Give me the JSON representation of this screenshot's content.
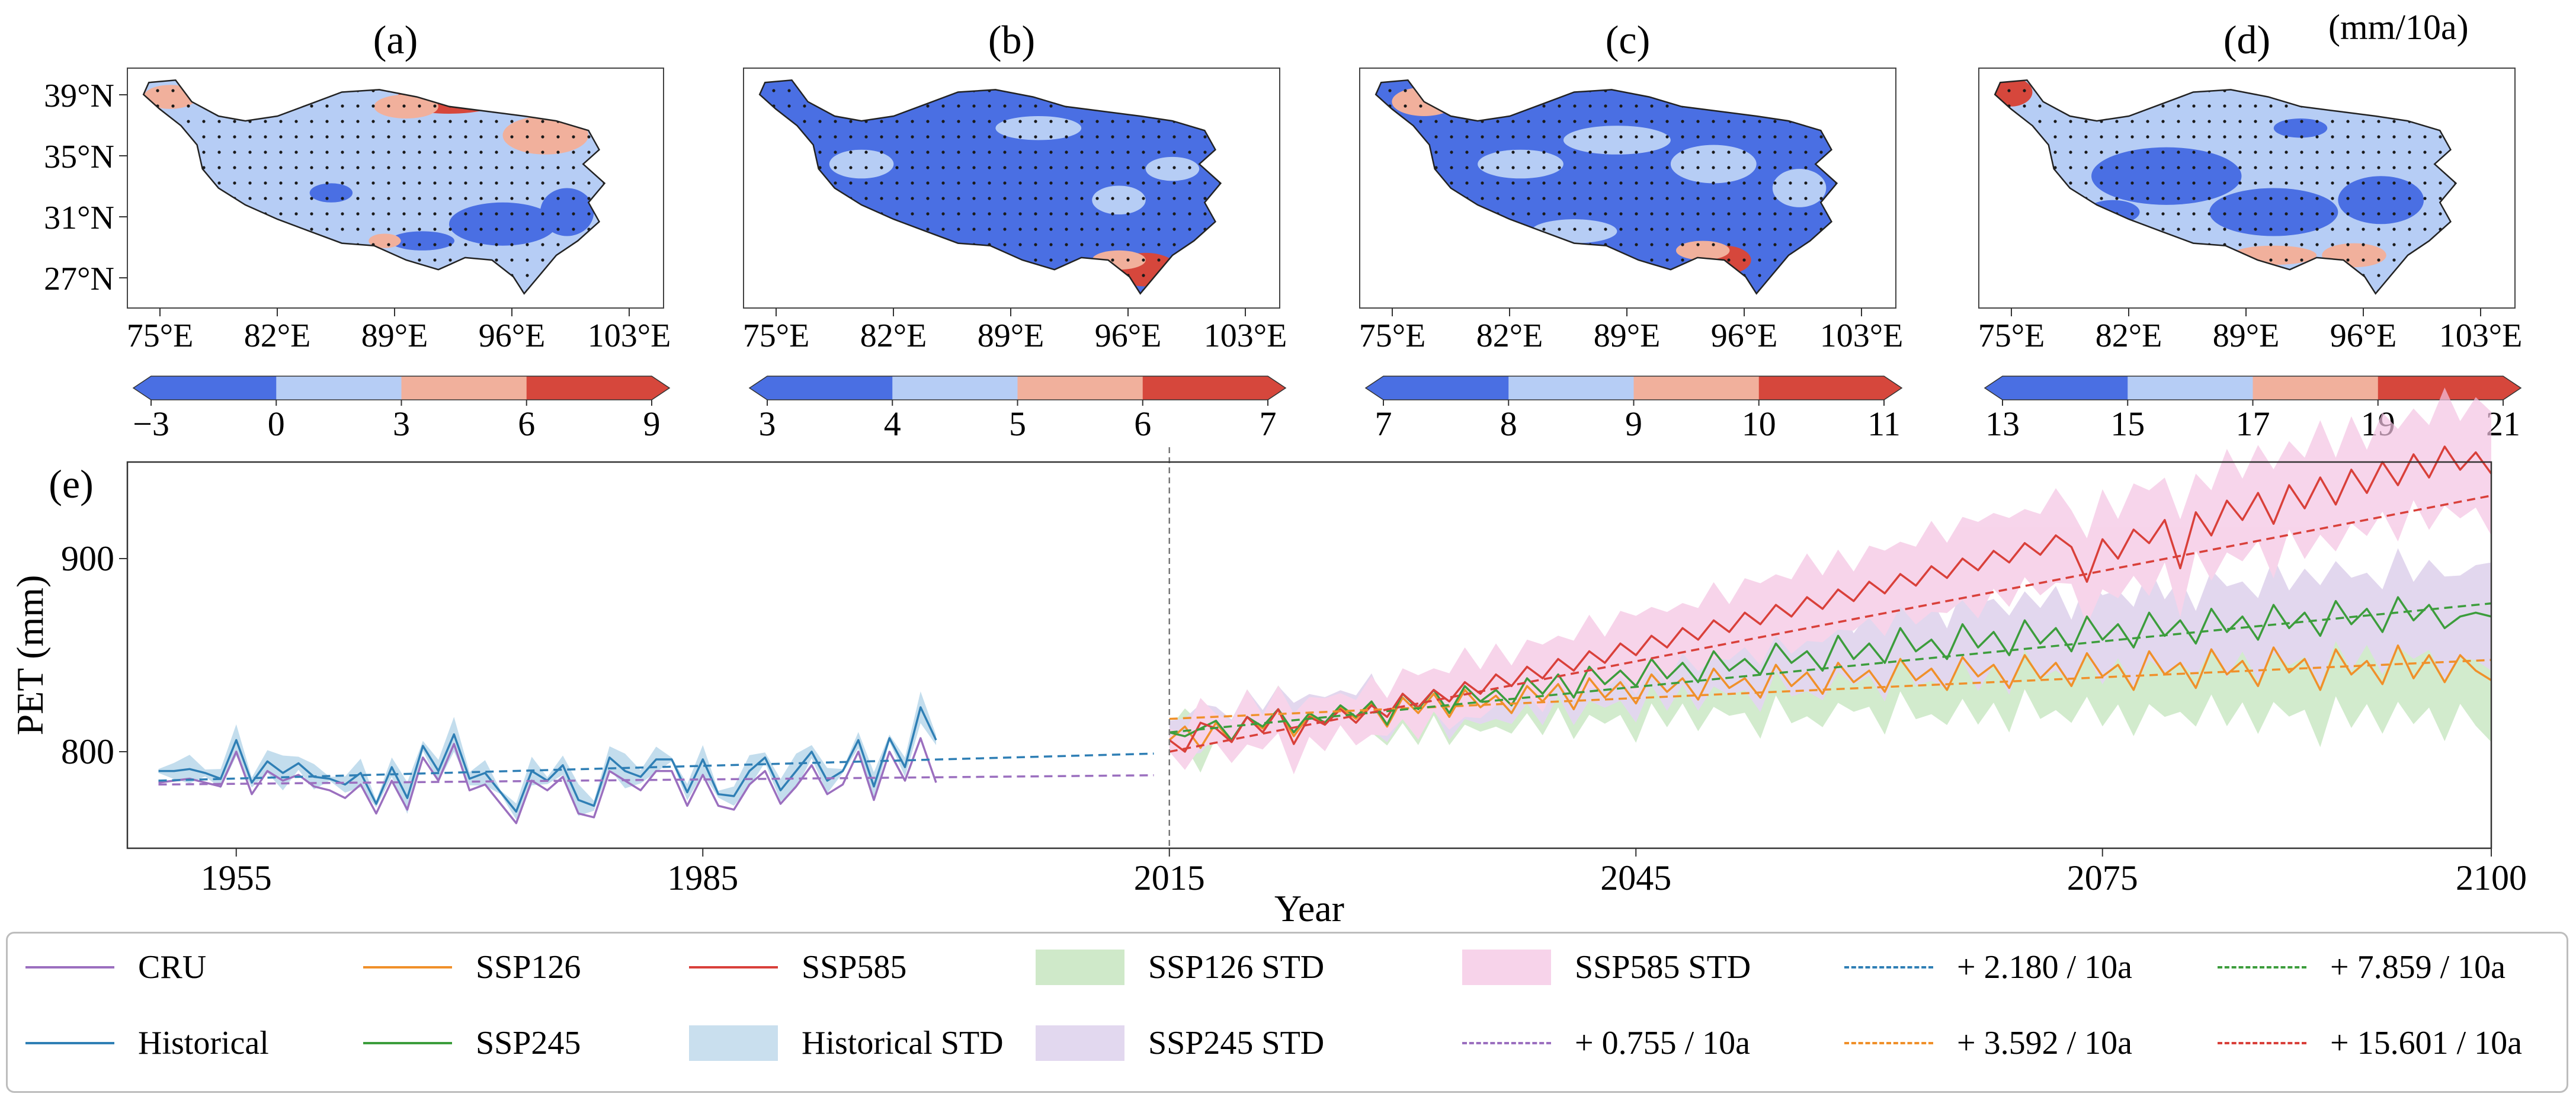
{
  "maps": [
    {
      "panel": "(a)",
      "colorbar": {
        "ticks": [
          "−3",
          "0",
          "3",
          "6",
          "9"
        ],
        "colors": [
          "#4a6fe3",
          "#b6cdf5",
          "#f1b09c",
          "#d6473c"
        ]
      }
    },
    {
      "panel": "(b)",
      "colorbar": {
        "ticks": [
          "3",
          "4",
          "5",
          "6",
          "7"
        ],
        "colors": [
          "#4a6fe3",
          "#b6cdf5",
          "#f1b09c",
          "#d6473c"
        ]
      }
    },
    {
      "panel": "(c)",
      "colorbar": {
        "ticks": [
          "7",
          "8",
          "9",
          "10",
          "11"
        ],
        "colors": [
          "#4a6fe3",
          "#b6cdf5",
          "#f1b09c",
          "#d6473c"
        ]
      }
    },
    {
      "panel": "(d)",
      "colorbar": {
        "ticks": [
          "13",
          "15",
          "17",
          "19",
          "21"
        ],
        "colors": [
          "#4a6fe3",
          "#b6cdf5",
          "#f1b09c",
          "#d6473c"
        ]
      }
    }
  ],
  "map_axes": {
    "lat_ticks": [
      "39°N",
      "35°N",
      "31°N",
      "27°N"
    ],
    "lon_ticks": [
      "75°E",
      "82°E",
      "89°E",
      "96°E",
      "103°E"
    ]
  },
  "unit_label": "(mm/10a)",
  "chart_data": {
    "type": "line",
    "panel": "(e)",
    "xlabel": "Year",
    "ylabel": "PET (mm)",
    "xlim": [
      1948,
      2100
    ],
    "ylim": [
      750,
      950
    ],
    "xticks": [
      1955,
      1985,
      2015,
      2045,
      2075,
      2100
    ],
    "yticks": [
      800,
      900
    ],
    "divider_x": 2015,
    "colors": {
      "cru": "#9b6fbf",
      "historical": "#2f7fb5",
      "ssp126": "#f0902a",
      "ssp245": "#3c9d3c",
      "ssp585": "#d9403a",
      "hist_std": "#a9cfe6",
      "ssp126_std": "#bfe3b8",
      "ssp245_std": "#d7c7e8",
      "ssp585_std": "#f4c3e2"
    },
    "series": [
      {
        "name": "CRU",
        "x0": 1950,
        "values": [
          784,
          785,
          786,
          784,
          782,
          800,
          778,
          790,
          785,
          788,
          782,
          780,
          776,
          783,
          768,
          785,
          770,
          797,
          785,
          804,
          780,
          783,
          773,
          763,
          785,
          780,
          787,
          768,
          766,
          790,
          785,
          780,
          790,
          790,
          772,
          788,
          772,
          770,
          783,
          790,
          773,
          782,
          793,
          778,
          783,
          800,
          775,
          800,
          785,
          807,
          784
        ]
      },
      {
        "name": "Historical",
        "x0": 1950,
        "values": [
          790,
          790,
          791,
          789,
          786,
          806,
          784,
          795,
          789,
          794,
          787,
          786,
          783,
          789,
          773,
          792,
          776,
          803,
          790,
          809,
          786,
          789,
          779,
          769,
          790,
          785,
          793,
          775,
          772,
          797,
          790,
          787,
          796,
          796,
          779,
          796,
          778,
          777,
          790,
          797,
          780,
          790,
          800,
          785,
          790,
          806,
          782,
          807,
          792,
          823,
          806
        ]
      },
      {
        "name": "SSP126",
        "x0": 2015,
        "values": [
          806,
          813,
          802,
          815,
          805,
          818,
          812,
          822,
          808,
          819,
          814,
          823,
          817,
          825,
          813,
          828,
          820,
          830,
          818,
          832,
          823,
          829,
          820,
          834,
          826,
          835,
          822,
          838,
          828,
          836,
          825,
          840,
          831,
          838,
          827,
          843,
          833,
          838,
          828,
          845,
          834,
          841,
          830,
          846,
          836,
          842,
          831,
          848,
          837,
          843,
          832,
          849,
          839,
          845,
          833,
          850,
          838,
          846,
          834,
          851,
          839,
          845,
          832,
          852,
          840,
          846,
          833,
          853,
          840,
          847,
          834,
          854,
          841,
          848,
          832,
          853,
          840,
          847,
          835,
          855,
          838,
          850,
          836,
          850,
          842,
          837
        ]
      },
      {
        "name": "SSP245",
        "x0": 2015,
        "values": [
          810,
          808,
          812,
          816,
          806,
          818,
          813,
          822,
          810,
          820,
          815,
          824,
          818,
          826,
          814,
          830,
          822,
          832,
          820,
          834,
          826,
          832,
          824,
          838,
          830,
          840,
          828,
          844,
          835,
          842,
          834,
          848,
          838,
          846,
          836,
          852,
          842,
          848,
          840,
          856,
          846,
          852,
          842,
          860,
          848,
          856,
          846,
          864,
          852,
          858,
          848,
          866,
          854,
          862,
          850,
          868,
          856,
          864,
          852,
          870,
          858,
          866,
          854,
          872,
          860,
          868,
          856,
          874,
          862,
          870,
          858,
          876,
          864,
          872,
          860,
          878,
          866,
          874,
          862,
          880,
          868,
          876,
          864,
          870,
          872,
          870
        ]
      },
      {
        "name": "SSP585",
        "x0": 2015,
        "values": [
          806,
          800,
          815,
          812,
          805,
          818,
          810,
          822,
          804,
          818,
          814,
          822,
          815,
          824,
          818,
          830,
          823,
          832,
          826,
          836,
          830,
          840,
          834,
          844,
          838,
          848,
          842,
          852,
          846,
          856,
          850,
          860,
          854,
          864,
          858,
          868,
          862,
          872,
          866,
          876,
          870,
          880,
          874,
          884,
          878,
          888,
          882,
          892,
          886,
          896,
          890,
          900,
          894,
          904,
          898,
          908,
          902,
          912,
          906,
          888,
          910,
          900,
          915,
          908,
          920,
          895,
          924,
          912,
          930,
          920,
          934,
          918,
          938,
          926,
          942,
          928,
          946,
          934,
          950,
          938,
          954,
          942,
          958,
          946,
          955,
          944
        ]
      },
      {
        "name": "+ 0.755 / 10a",
        "style": "dashed",
        "color": "#9b6fbf",
        "x": [
          1950,
          2014
        ],
        "y": [
          783.0,
          787.8
        ]
      },
      {
        "name": "+ 2.180 / 10a",
        "style": "dashed",
        "color": "#2f7fb5",
        "x": [
          1950,
          2014
        ],
        "y": [
          785.0,
          799.0
        ]
      },
      {
        "name": "+ 3.592 / 10a",
        "style": "dashed",
        "color": "#f0902a",
        "x": [
          2015,
          2100
        ],
        "y": [
          817.0,
          847.5
        ]
      },
      {
        "name": "+ 7.859 / 10a",
        "style": "dashed",
        "color": "#3c9d3c",
        "x": [
          2015,
          2100
        ],
        "y": [
          810.0,
          876.8
        ]
      },
      {
        "name": "+ 15.601 / 10a",
        "style": "dashed",
        "color": "#d9403a",
        "x": [
          2015,
          2100
        ],
        "y": [
          800.0,
          932.6
        ]
      }
    ],
    "std_bands": [
      {
        "name": "Historical STD",
        "x0": 1950,
        "half_width": 5
      },
      {
        "name": "SSP126 STD",
        "x0": 2015,
        "half_width_start": 10,
        "half_width_end": 28
      },
      {
        "name": "SSP245 STD",
        "x0": 2015,
        "half_width_start": 10,
        "half_width_end": 24
      },
      {
        "name": "SSP585 STD",
        "x0": 2015,
        "half_width_start": 10,
        "half_width_end": 28
      }
    ]
  },
  "legend": {
    "items": [
      {
        "label": "CRU",
        "kind": "line",
        "color": "#9b6fbf"
      },
      {
        "label": "Historical",
        "kind": "line",
        "color": "#2f7fb5"
      },
      {
        "label": "SSP126",
        "kind": "line",
        "color": "#f0902a"
      },
      {
        "label": "SSP245",
        "kind": "line",
        "color": "#3c9d3c"
      },
      {
        "label": "SSP585",
        "kind": "line",
        "color": "#d9403a"
      },
      {
        "label": "Historical STD",
        "kind": "patch",
        "color": "#c9dfee"
      },
      {
        "label": "SSP126 STD",
        "kind": "patch",
        "color": "#cfe9c9"
      },
      {
        "label": "SSP245 STD",
        "kind": "patch",
        "color": "#e2d8ef"
      },
      {
        "label": "SSP585 STD",
        "kind": "patch",
        "color": "#f7d3ea"
      },
      {
        "label": "+ 0.755 / 10a",
        "kind": "dash",
        "color": "#9b6fbf"
      },
      {
        "label": "+ 2.180 / 10a",
        "kind": "dash",
        "color": "#2f7fb5"
      },
      {
        "label": "+ 3.592 / 10a",
        "kind": "dash",
        "color": "#f0902a"
      },
      {
        "label": "+ 7.859 / 10a",
        "kind": "dash",
        "color": "#3c9d3c"
      },
      {
        "label": "+ 15.601 / 10a",
        "kind": "dash",
        "color": "#d9403a"
      }
    ]
  }
}
